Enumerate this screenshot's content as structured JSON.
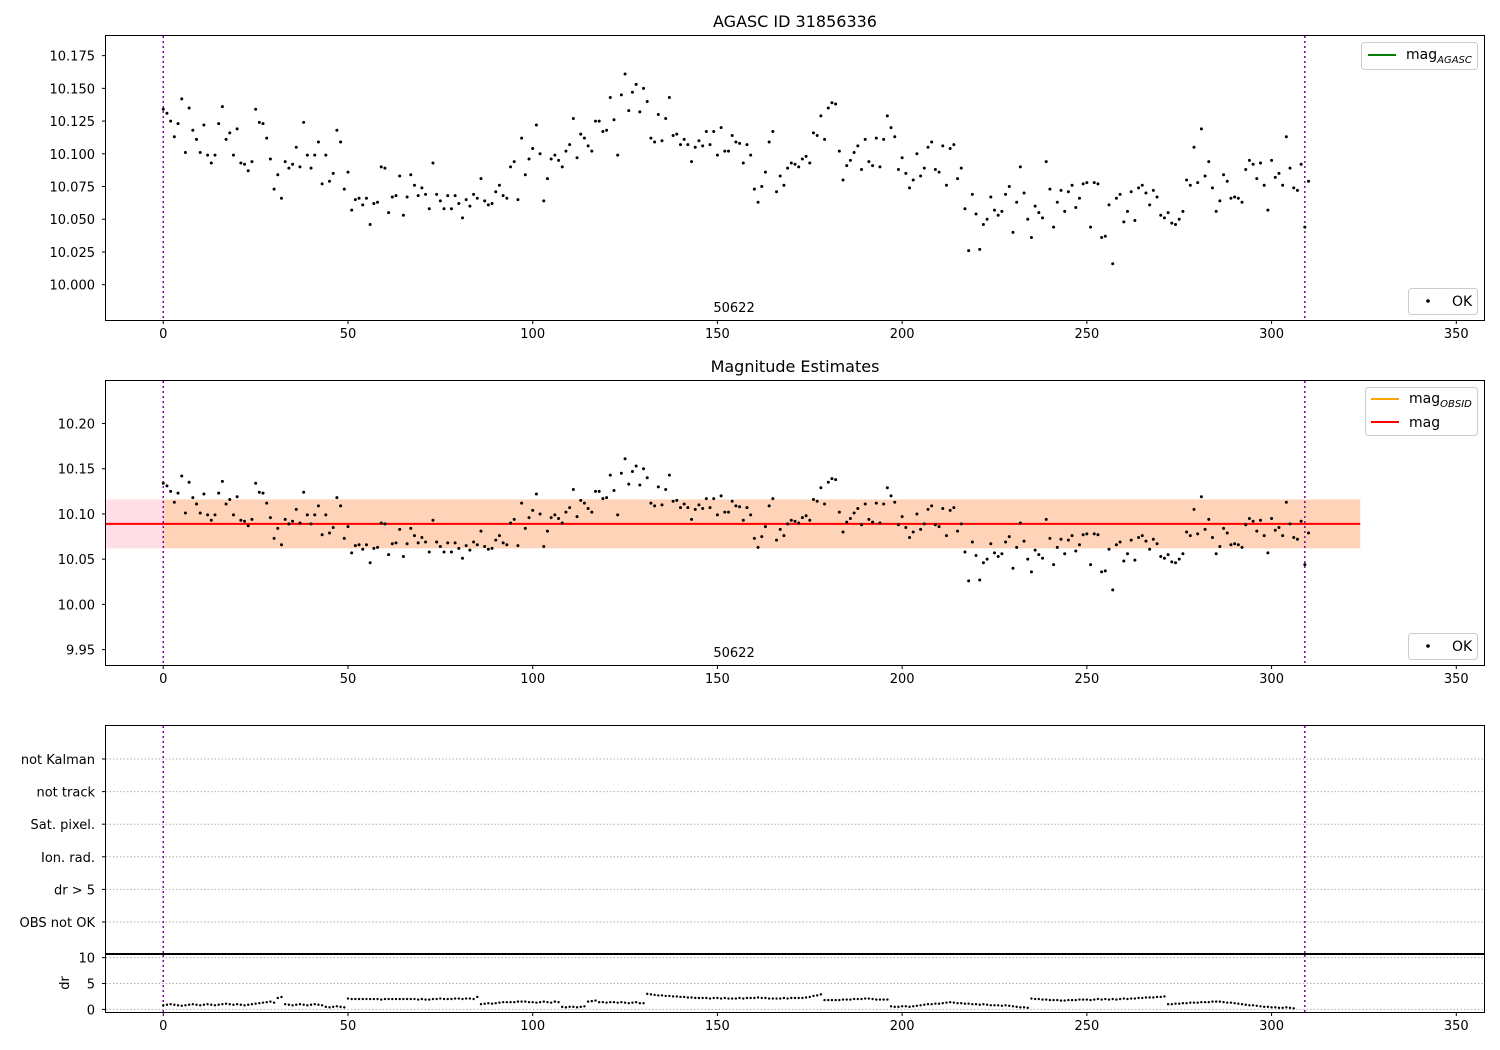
{
  "chart_data": [
    {
      "type": "scatter",
      "title": "AGASC ID 31856336",
      "xlim": [
        -15.5,
        357.5
      ],
      "ylim": [
        9.973,
        10.19
      ],
      "xticks": [
        0,
        50,
        100,
        150,
        200,
        250,
        300,
        350
      ],
      "yticks": [
        10.0,
        10.025,
        10.05,
        10.075,
        10.1,
        10.125,
        10.15,
        10.175
      ],
      "ytick_labels": [
        "10.000",
        "10.025",
        "10.050",
        "10.075",
        "10.100",
        "10.125",
        "10.150",
        "10.175"
      ],
      "vlines": [
        0,
        309
      ],
      "obsid_label": {
        "text": "50622",
        "x": 154.5
      },
      "legend_lines": [
        {
          "label": "mag",
          "sub": "AGASC",
          "color": "#008000"
        }
      ],
      "legend_points": [
        {
          "label": "OK",
          "color": "#000000"
        }
      ]
    },
    {
      "type": "scatter",
      "title": "Magnitude Estimates",
      "xlim": [
        -15.5,
        357.5
      ],
      "ylim": [
        9.933,
        10.247
      ],
      "xticks": [
        0,
        50,
        100,
        150,
        200,
        250,
        300,
        350
      ],
      "yticks": [
        9.95,
        10.0,
        10.05,
        10.1,
        10.15,
        10.2
      ],
      "ytick_labels": [
        "9.95",
        "10.00",
        "10.05",
        "10.10",
        "10.15",
        "10.20"
      ],
      "vlines": [
        0,
        309
      ],
      "mag_line": 10.089,
      "band_outer": {
        "x": [
          -15.5,
          324
        ],
        "y": [
          10.062,
          10.116
        ]
      },
      "band_inner": {
        "x": [
          0,
          324
        ],
        "y": [
          10.062,
          10.116
        ]
      },
      "obsid_label": {
        "text": "50622",
        "x": 154.5
      },
      "legend_lines": [
        {
          "label": "mag",
          "sub": "OBSID",
          "color": "#ffa500"
        },
        {
          "label": "mag",
          "sub": "",
          "color": "#ff0000"
        }
      ],
      "legend_points": [
        {
          "label": "OK",
          "color": "#000000"
        }
      ]
    },
    {
      "type": "table",
      "categories": [
        "not Kalman",
        "not track",
        "Sat. pixel.",
        "Ion. rad.",
        "dr > 5",
        "OBS not OK"
      ],
      "xlim": [
        -15.5,
        357.5
      ],
      "vlines": [
        0,
        309
      ]
    },
    {
      "type": "scatter",
      "ylabel": "dr",
      "xlim": [
        -15.5,
        357.5
      ],
      "ylim": [
        -0.5,
        10.5
      ],
      "xticks": [
        0,
        50,
        100,
        150,
        200,
        250,
        300,
        350
      ],
      "yticks": [
        0,
        5,
        10
      ],
      "vlines": [
        0,
        309
      ]
    }
  ],
  "mag_series": [
    10.134,
    10.131,
    10.125,
    10.113,
    10.123,
    10.142,
    10.101,
    10.135,
    10.118,
    10.111,
    10.101,
    10.122,
    10.099,
    10.093,
    10.099,
    10.123,
    10.136,
    10.111,
    10.116,
    10.099,
    10.119,
    10.093,
    10.092,
    10.087,
    10.094,
    10.134,
    10.124,
    10.123,
    10.112,
    10.096,
    10.073,
    10.084,
    10.066,
    10.094,
    10.089,
    10.092,
    10.105,
    10.09,
    10.124,
    10.099,
    10.089,
    10.099,
    10.109,
    10.077,
    10.099,
    10.079,
    10.085,
    10.118,
    10.109,
    10.073,
    10.086,
    10.057,
    10.065,
    10.066,
    10.061,
    10.066,
    10.046,
    10.062,
    10.063,
    10.09,
    10.089,
    10.055,
    10.067,
    10.068,
    10.083,
    10.053,
    10.067,
    10.084,
    10.076,
    10.068,
    10.074,
    10.069,
    10.058,
    10.093,
    10.069,
    10.064,
    10.058,
    10.068,
    10.058,
    10.068,
    10.062,
    10.051,
    10.065,
    10.06,
    10.069,
    10.066,
    10.081,
    10.064,
    10.061,
    10.062,
    10.071,
    10.076,
    10.068,
    10.066,
    10.09,
    10.094,
    10.065,
    10.112,
    10.084,
    10.096,
    10.104,
    10.122,
    10.1,
    10.064,
    10.081,
    10.096,
    10.099,
    10.095,
    10.09,
    10.102,
    10.107,
    10.127,
    10.097,
    10.115,
    10.112,
    10.106,
    10.102,
    10.125,
    10.125,
    10.117,
    10.118,
    10.143,
    10.126,
    10.099,
    10.145,
    10.161,
    10.133,
    10.147,
    10.153,
    10.132,
    10.15,
    10.14,
    10.112,
    10.109,
    10.13,
    10.11,
    10.127,
    10.143,
    10.114,
    10.115,
    10.107,
    10.111,
    10.107,
    10.094,
    10.105,
    10.11,
    10.106,
    10.117,
    10.107,
    10.117,
    10.099,
    10.12,
    10.102,
    10.102,
    10.114,
    10.109,
    10.108,
    10.093,
    10.107,
    10.099,
    10.073,
    10.063,
    10.075,
    10.086,
    10.109,
    10.117,
    10.071,
    10.083,
    10.076,
    10.089,
    10.093,
    10.092,
    10.09,
    10.096,
    10.098,
    10.093,
    10.116,
    10.114,
    10.129,
    10.111,
    10.135,
    10.139,
    10.138,
    10.102,
    10.08,
    10.091,
    10.095,
    10.101,
    10.106,
    10.088,
    10.111,
    10.094,
    10.091,
    10.112,
    10.09,
    10.111,
    10.129,
    10.12,
    10.113,
    10.088,
    10.097,
    10.085,
    10.074,
    10.08,
    10.1,
    10.083,
    10.089,
    10.105,
    10.109,
    10.088,
    10.086,
    10.106,
    10.076,
    10.104,
    10.107,
    10.081,
    10.089,
    10.058,
    10.026,
    10.069,
    10.054,
    10.027,
    10.046,
    10.05,
    10.067,
    10.057,
    10.053,
    10.056,
    10.069,
    10.075,
    10.04,
    10.063,
    10.09,
    10.07,
    10.05,
    10.036,
    10.06,
    10.055,
    10.051,
    10.094,
    10.073,
    10.044,
    10.063,
    10.072,
    10.056,
    10.071,
    10.076,
    10.059,
    10.066,
    10.077,
    10.078,
    10.044,
    10.078,
    10.077,
    10.036,
    10.037,
    10.061,
    10.016,
    10.066,
    10.069,
    10.048,
    10.056,
    10.071,
    10.049,
    10.074,
    10.076,
    10.07,
    10.061,
    10.072,
    10.067,
    10.053,
    10.051,
    10.055,
    10.047,
    10.046,
    10.05,
    10.056,
    10.08,
    10.076,
    10.105,
    10.078,
    10.119,
    10.083,
    10.094,
    10.074,
    10.056,
    10.064,
    10.084,
    10.079,
    10.066,
    10.067,
    10.066,
    10.063,
    10.088,
    10.095,
    10.092,
    10.081,
    10.093,
    10.076,
    10.057,
    10.095,
    10.082,
    10.085,
    10.076,
    10.113,
    10.089,
    10.074,
    10.072,
    10.092,
    10.044,
    10.079
  ],
  "dr_series": [
    0.8,
    0.9,
    1.0,
    0.9,
    0.8,
    0.7,
    0.8,
    0.9,
    1.0,
    0.9,
    0.8,
    0.9,
    1.0,
    0.9,
    0.8,
    0.9,
    1.0,
    1.1,
    1.0,
    0.9,
    1.0,
    0.9,
    0.8,
    0.9,
    1.0,
    1.1,
    1.2,
    1.3,
    1.4,
    1.5,
    1.3,
    2.2,
    2.4,
    1.0,
    0.9,
    0.8,
    0.9,
    1.0,
    0.9,
    0.8,
    0.9,
    1.0,
    0.9,
    0.8,
    0.5,
    0.4,
    0.5,
    0.6,
    0.5,
    0.4,
    2.1,
    2.0,
    2.0,
    2.0,
    2.0,
    2.0,
    2.0,
    2.0,
    2.0,
    1.9,
    2.0,
    2.0,
    2.0,
    2.0,
    2.0,
    2.0,
    2.0,
    2.0,
    2.0,
    1.9,
    2.0,
    1.9,
    1.9,
    2.0,
    2.0,
    2.1,
    2.0,
    2.0,
    2.0,
    2.1,
    2.1,
    2.0,
    2.1,
    2.1,
    2.0,
    2.4,
    1.0,
    1.1,
    1.2,
    1.1,
    1.2,
    1.3,
    1.4,
    1.4,
    1.4,
    1.4,
    1.5,
    1.5,
    1.5,
    1.4,
    1.4,
    1.3,
    1.4,
    1.5,
    1.4,
    1.3,
    1.5,
    1.4,
    0.5,
    0.4,
    0.5,
    0.5,
    0.4,
    0.5,
    0.6,
    1.5,
    1.6,
    1.7,
    1.4,
    1.4,
    1.3,
    1.4,
    1.4,
    1.3,
    1.4,
    1.3,
    1.2,
    1.3,
    1.4,
    1.2,
    1.2,
    3.0,
    2.9,
    2.8,
    2.7,
    2.7,
    2.6,
    2.6,
    2.5,
    2.5,
    2.4,
    2.4,
    2.3,
    2.3,
    2.2,
    2.2,
    2.2,
    2.2,
    2.1,
    2.2,
    2.2,
    2.1,
    2.2,
    2.1,
    2.1,
    2.1,
    2.2,
    2.1,
    2.2,
    2.2,
    2.2,
    2.3,
    2.2,
    2.2,
    2.1,
    2.1,
    2.1,
    2.1,
    2.2,
    2.1,
    2.2,
    2.2,
    2.2,
    2.2,
    2.3,
    2.4,
    2.6,
    2.7,
    2.9,
    1.8,
    1.8,
    1.8,
    1.8,
    1.8,
    1.9,
    1.9,
    1.9,
    2.0,
    2.0,
    2.0,
    2.1,
    2.1,
    2.0,
    1.9,
    1.9,
    1.9,
    1.9,
    0.6,
    0.5,
    0.5,
    0.6,
    0.6,
    0.5,
    0.6,
    0.7,
    0.8,
    0.9,
    1.0,
    1.0,
    1.1,
    1.1,
    1.2,
    1.3,
    1.4,
    1.3,
    1.2,
    1.2,
    1.1,
    1.1,
    1.0,
    1.0,
    0.9,
    1.0,
    0.9,
    0.8,
    0.8,
    0.8,
    0.7,
    0.8,
    0.7,
    0.6,
    0.5,
    0.4,
    0.4,
    0.3,
    2.1,
    2.0,
    2.0,
    1.9,
    1.9,
    1.8,
    1.8,
    1.8,
    1.7,
    1.7,
    1.8,
    1.8,
    1.8,
    1.9,
    1.9,
    1.9,
    1.8,
    1.9,
    2.0,
    1.9,
    2.0,
    1.9,
    2.0,
    1.9,
    2.0,
    2.1,
    2.0,
    2.1,
    2.1,
    2.2,
    2.2,
    2.3,
    2.3,
    2.3,
    2.4,
    2.4,
    2.5,
    1.0,
    1.0,
    1.1,
    1.1,
    1.2,
    1.2,
    1.3,
    1.3,
    1.3,
    1.4,
    1.4,
    1.4,
    1.5,
    1.5,
    1.5,
    1.4,
    1.3,
    1.3,
    1.2,
    1.1,
    1.0,
    0.9,
    0.8,
    0.8,
    0.7,
    0.6,
    0.5,
    0.5,
    0.4,
    0.4,
    0.3,
    0.3,
    0.4,
    0.3,
    0.2
  ]
}
